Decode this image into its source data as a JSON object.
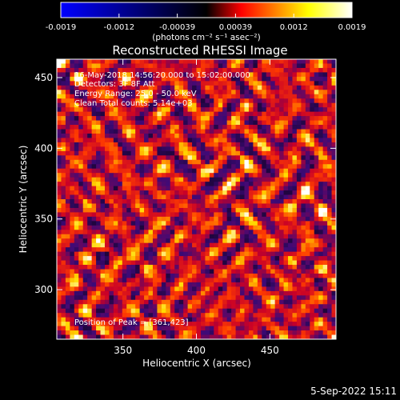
{
  "chart_data": {
    "type": "heatmap",
    "title": "Reconstructed RHESSI Image",
    "xlabel": "Heliocentric X (arcsec)",
    "ylabel": "Heliocentric Y (arcsec)",
    "xlim": [
      305,
      495
    ],
    "ylim": [
      265,
      463
    ],
    "x_ticks": [
      350,
      400,
      450
    ],
    "y_ticks": [
      300,
      350,
      400,
      450
    ],
    "colorbar": {
      "min": -0.0019,
      "max": 0.0019,
      "tick_labels": [
        "-0.0019",
        "-0.0012",
        "-0.00039",
        "0.00039",
        "0.0012",
        "0.0019"
      ],
      "units_label": "(photons cm⁻² s⁻¹ asec⁻²)",
      "colors": [
        "#0000ff",
        "#000000",
        "#ff0000",
        "#ffff00",
        "#ffffff"
      ]
    },
    "annotations": [
      "16-May-2018 14:56:20.000 to 15:02:00.000",
      "Detectors: 3F 8F  Att",
      "Energy Range: 25.0 - 50.0 keV",
      "Clean    Total counts: 5.14e+03",
      "Position of Peak = [361,423]"
    ],
    "peak_position": [
      361,
      423
    ],
    "grid": false,
    "legend": "colorbar-top"
  },
  "footer": {
    "timestamp": "5-Sep-2022 15:11"
  }
}
